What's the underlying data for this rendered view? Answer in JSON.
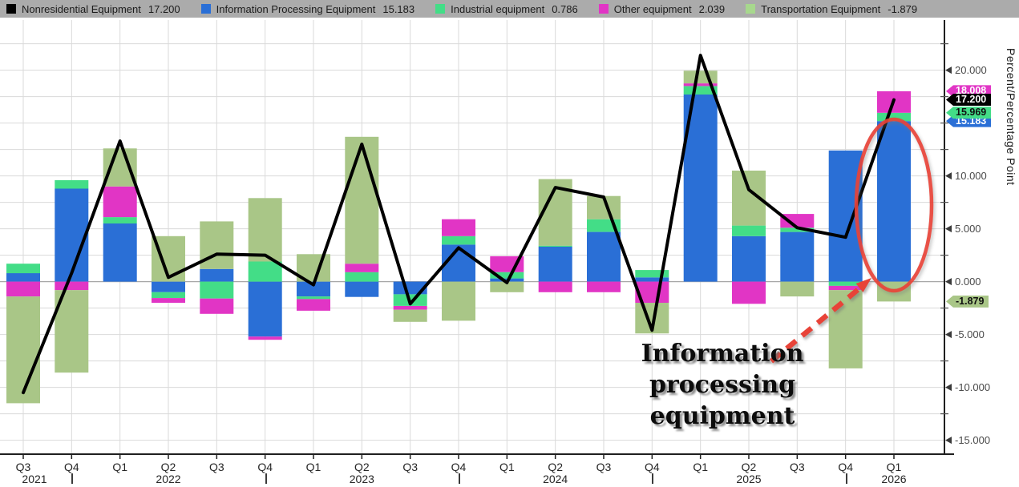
{
  "legend": {
    "items": [
      {
        "label": "Nonresidential Equipment",
        "value": "17.200",
        "color": "#000000"
      },
      {
        "label": "Information Processing Equipment",
        "value": "15.183",
        "color": "#2a6fd6"
      },
      {
        "label": "Industrial equipment",
        "value": "0.786",
        "color": "#43dd87"
      },
      {
        "label": "Other equipment",
        "value": "2.039",
        "color": "#e135c5"
      },
      {
        "label": "Transportation Equipment",
        "value": "-1.879",
        "color": "#a7d88d"
      }
    ]
  },
  "y_axis": {
    "title": "Percent/Percentage Point",
    "major_ticks": [
      {
        "v": 20,
        "label": "20.000"
      },
      {
        "v": 10,
        "label": "10.000"
      },
      {
        "v": 5,
        "label": "5.000"
      },
      {
        "v": 0,
        "label": "0.000"
      },
      {
        "v": -5,
        "label": "-5.000"
      },
      {
        "v": -10,
        "label": "-10.000"
      },
      {
        "v": -15,
        "label": "-15.000"
      }
    ],
    "minor_ticks": [
      22.5,
      17.5,
      15,
      12.5,
      7.5,
      2.5,
      -2.5,
      -7.5,
      -12.5
    ],
    "badges": [
      {
        "text": "18.008",
        "value": 18.008,
        "bg": "#e135c5",
        "fg": "#ffffff",
        "z": 2
      },
      {
        "text": "17.200",
        "value": 17.2,
        "bg": "#000000",
        "fg": "#ffffff",
        "z": 4
      },
      {
        "text": "15.969",
        "value": 15.969,
        "bg": "#43dd87",
        "fg": "#101010",
        "z": 3
      },
      {
        "text": "15.183",
        "value": 15.183,
        "bg": "#2a6fd6",
        "fg": "#ffffff",
        "z": 2
      },
      {
        "text": "-1.879",
        "value": -1.879,
        "bg": "#a9c687",
        "fg": "#101010",
        "z": 2
      }
    ]
  },
  "x_axis": {
    "quarter_labels": [
      "Q3",
      "Q4",
      "Q1",
      "Q2",
      "Q3",
      "Q4",
      "Q1",
      "Q2",
      "Q3",
      "Q4",
      "Q1",
      "Q2",
      "Q3",
      "Q4",
      "Q1",
      "Q2",
      "Q3",
      "Q4",
      "Q1"
    ],
    "year_labels": [
      {
        "text": "2021",
        "index": 0,
        "dx": 14
      },
      {
        "text": "2022",
        "index": 3,
        "dx": 0
      },
      {
        "text": "2023",
        "index": 7,
        "dx": 0
      },
      {
        "text": "2024",
        "index": 11,
        "dx": 0
      },
      {
        "text": "2025",
        "index": 15,
        "dx": 0
      },
      {
        "text": "2026",
        "index": 18,
        "dx": 0
      }
    ],
    "year_separator_indices": [
      1,
      5,
      9,
      13,
      17
    ]
  },
  "annotation": {
    "lines": [
      "Information",
      "processing",
      "equipment"
    ],
    "line1": "Information",
    "line2": "processing",
    "line3": "equipment",
    "accent_color": "#e84338"
  },
  "chart_data": {
    "type": "stacked-bar+line",
    "title": "",
    "xlabel": "",
    "ylabel": "Percent/Percentage Point",
    "ylim": [
      -16.3,
      24.8
    ],
    "grid": true,
    "grid_step": 2.5,
    "legend_position": "top",
    "categories": [
      "Q3 2021",
      "Q4 2021",
      "Q1 2022",
      "Q2 2022",
      "Q3 2022",
      "Q4 2022",
      "Q1 2023",
      "Q2 2023",
      "Q3 2023",
      "Q4 2023",
      "Q1 2024",
      "Q2 2024",
      "Q3 2024",
      "Q4 2024",
      "Q1 2025",
      "Q2 2025",
      "Q3 2025",
      "Q4 2025",
      "Q1 2026"
    ],
    "bar_series": [
      {
        "name": "Information Processing Equipment",
        "color": "#2a6fd6",
        "values": [
          0.8,
          8.8,
          5.5,
          -1.0,
          1.2,
          -5.2,
          -1.4,
          -1.45,
          -1.2,
          3.5,
          0.3,
          3.3,
          4.7,
          0.4,
          17.7,
          4.3,
          4.7,
          12.4,
          15.183
        ]
      },
      {
        "name": "Industrial equipment",
        "color": "#43dd87",
        "values": [
          0.9,
          0.8,
          0.6,
          -0.55,
          -1.6,
          1.9,
          -0.25,
          0.9,
          -1.1,
          0.8,
          0.6,
          0.1,
          1.2,
          0.7,
          0.8,
          1.0,
          0.4,
          -0.4,
          0.786
        ]
      },
      {
        "name": "Other equipment",
        "color": "#e135c5",
        "values": [
          -1.4,
          -0.8,
          2.9,
          -0.45,
          -1.45,
          -0.3,
          -1.1,
          0.8,
          -0.35,
          1.6,
          1.5,
          -1.0,
          -1.0,
          -2.0,
          0.25,
          -2.1,
          1.3,
          -0.4,
          2.039
        ]
      },
      {
        "name": "Transportation Equipment",
        "color": "#a9c687",
        "values": [
          -10.1,
          -7.8,
          3.6,
          4.3,
          4.5,
          6.0,
          2.6,
          12.0,
          -1.15,
          -3.7,
          -1.0,
          6.3,
          2.2,
          -2.9,
          1.2,
          5.2,
          -1.4,
          -7.4,
          -1.879
        ]
      }
    ],
    "line_series": {
      "name": "Nonresidential Equipment",
      "color": "#000000",
      "values": [
        -10.5,
        0.8,
        13.3,
        0.4,
        2.6,
        2.5,
        -0.3,
        13.0,
        -2.1,
        3.2,
        -0.1,
        8.9,
        8.0,
        -4.6,
        21.4,
        8.7,
        5.1,
        4.2,
        17.2
      ]
    }
  }
}
